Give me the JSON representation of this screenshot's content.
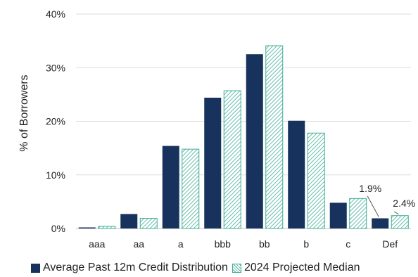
{
  "chart_data": {
    "type": "bar",
    "categories": [
      "aaa",
      "aa",
      "a",
      "bbb",
      "bb",
      "b",
      "c",
      "Def"
    ],
    "series": [
      {
        "name": "Average Past 12m Credit Distribution",
        "values": [
          0.2,
          2.7,
          15.4,
          24.4,
          32.5,
          20.1,
          4.8,
          1.9
        ],
        "color": "#17325c",
        "style": "solid"
      },
      {
        "name": "2024 Projected Median",
        "values": [
          0.4,
          1.9,
          14.8,
          25.7,
          34.1,
          17.8,
          5.6,
          2.4
        ],
        "color": "#3fae95",
        "style": "hatched"
      }
    ],
    "ylabel": "% of Borrowers",
    "ylim": [
      0,
      40
    ],
    "yticks": [
      "0%",
      "10%",
      "20%",
      "30%",
      "40%"
    ],
    "grid": "horizontal",
    "legend": "bottom",
    "annotations": [
      {
        "text": "1.9%",
        "category": "Def",
        "series": 0
      },
      {
        "text": "2.4%",
        "category": "Def",
        "series": 1
      }
    ]
  }
}
